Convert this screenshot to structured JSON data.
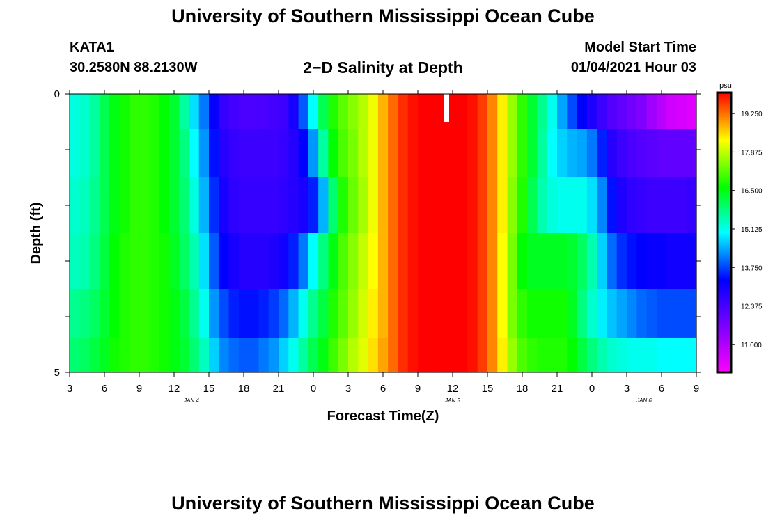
{
  "header": {
    "title": "University of Southern Mississippi Ocean Cube",
    "station_id": "KATA1",
    "station_coords": "30.2580N 88.2130W",
    "plot_title": "2−D Salinity at Depth",
    "model_start_label": "Model Start Time",
    "model_start_value": "01/04/2021 Hour 03"
  },
  "footer": {
    "title": "University of Southern Mississippi Ocean Cube"
  },
  "chart_data": {
    "type": "heatmap",
    "xlabel": "Forecast Time(Z)",
    "ylabel": "Depth (ft)",
    "x_tick_labels": [
      "3",
      "6",
      "9",
      "12",
      "15",
      "18",
      "21",
      "0",
      "3",
      "6",
      "9",
      "12",
      "15",
      "18",
      "21",
      "0",
      "3",
      "6",
      "9"
    ],
    "x_hours_from_start": [
      0,
      3,
      6,
      9,
      12,
      15,
      18,
      21,
      24,
      27,
      30,
      33,
      36,
      39,
      42,
      45,
      48,
      51,
      54
    ],
    "day_labels": [
      {
        "label": "JAN 4",
        "hour": 10.5
      },
      {
        "label": "JAN 5",
        "hour": 33
      },
      {
        "label": "JAN 6",
        "hour": 49.5
      }
    ],
    "y_tick_labels": [
      "0",
      "5"
    ],
    "ylim": [
      0,
      5
    ],
    "depth_levels_ft": [
      0.25,
      1.0,
      2.0,
      3.0,
      4.0,
      4.75
    ],
    "colorbar": {
      "unit": "psu",
      "ticks": [
        "19.250",
        "17.875",
        "16.500",
        "15.125",
        "13.750",
        "12.375",
        "11.000"
      ],
      "range": [
        10.0,
        20.0
      ]
    },
    "salinity_psu": [
      [
        15.2,
        15.3,
        15.6,
        16.1,
        16.5,
        16.7,
        16.9,
        16.9,
        16.8,
        16.6,
        16.3,
        15.6,
        14.8,
        14.1,
        13.2,
        12.6,
        12.4,
        12.3,
        12.3,
        12.3,
        12.4,
        12.5,
        13.0,
        13.9,
        15.0,
        16.1,
        16.8,
        17.2,
        17.5,
        17.8,
        18.2,
        18.8,
        19.3,
        19.7,
        19.9,
        20.0,
        20.0,
        20.0,
        20.0,
        20.0,
        19.9,
        19.6,
        19.1,
        18.4,
        17.6,
        16.9,
        16.3,
        15.7,
        15.1,
        14.4,
        13.8,
        13.3,
        12.9,
        12.5,
        12.2,
        12.0,
        11.8,
        11.6,
        11.2,
        10.9,
        10.6,
        10.5,
        10.4
      ],
      [
        15.2,
        15.3,
        15.6,
        16.1,
        16.5,
        16.7,
        16.9,
        16.9,
        16.8,
        16.6,
        16.3,
        15.8,
        15.0,
        14.3,
        13.4,
        12.8,
        12.6,
        12.5,
        12.5,
        12.5,
        12.5,
        12.6,
        12.8,
        13.3,
        14.3,
        15.6,
        16.6,
        17.1,
        17.4,
        17.8,
        18.2,
        18.8,
        19.3,
        19.7,
        19.9,
        20.0,
        20.0,
        20.0,
        20.0,
        20.0,
        19.9,
        19.6,
        19.1,
        18.4,
        17.6,
        16.9,
        16.3,
        15.6,
        15.0,
        14.7,
        14.5,
        14.4,
        14.1,
        13.5,
        12.8,
        12.5,
        12.3,
        12.2,
        12.1,
        12.0,
        12.0,
        12.0,
        12.0
      ],
      [
        15.3,
        15.4,
        15.7,
        16.1,
        16.5,
        16.7,
        16.9,
        16.9,
        16.8,
        16.6,
        16.3,
        15.9,
        15.2,
        14.5,
        13.6,
        13.0,
        12.7,
        12.6,
        12.6,
        12.6,
        12.6,
        12.7,
        12.8,
        13.0,
        13.5,
        14.5,
        15.9,
        16.8,
        17.3,
        17.7,
        18.2,
        18.8,
        19.3,
        19.7,
        19.9,
        20.0,
        20.0,
        20.0,
        20.0,
        20.0,
        19.9,
        19.6,
        19.1,
        18.4,
        17.5,
        16.8,
        16.1,
        15.5,
        15.2,
        15.1,
        15.1,
        15.1,
        14.8,
        14.2,
        13.4,
        12.9,
        12.7,
        12.6,
        12.5,
        12.5,
        12.5,
        12.5,
        12.6
      ],
      [
        15.4,
        15.5,
        15.8,
        16.2,
        16.6,
        16.8,
        16.9,
        16.9,
        16.8,
        16.7,
        16.4,
        16.0,
        15.5,
        14.8,
        13.9,
        13.3,
        13.0,
        12.8,
        12.8,
        12.8,
        12.9,
        13.1,
        13.5,
        14.1,
        15.0,
        15.8,
        16.5,
        17.1,
        17.5,
        17.9,
        18.3,
        18.8,
        19.3,
        19.7,
        19.9,
        20.0,
        20.0,
        20.0,
        20.0,
        20.0,
        19.9,
        19.6,
        19.1,
        18.3,
        17.4,
        16.6,
        16.4,
        16.4,
        16.4,
        16.4,
        16.3,
        16.0,
        15.5,
        14.7,
        14.0,
        13.6,
        13.4,
        13.3,
        13.2,
        13.2,
        13.1,
        13.1,
        13.1
      ],
      [
        15.7,
        15.8,
        16.0,
        16.3,
        16.6,
        16.8,
        16.9,
        16.9,
        16.8,
        16.7,
        16.5,
        16.2,
        15.7,
        15.1,
        14.3,
        13.8,
        13.5,
        13.4,
        13.4,
        13.5,
        13.7,
        14.0,
        14.5,
        15.1,
        15.7,
        16.2,
        16.8,
        17.2,
        17.6,
        18.0,
        18.4,
        18.8,
        19.3,
        19.7,
        19.9,
        20.0,
        20.0,
        20.0,
        20.0,
        20.0,
        19.9,
        19.6,
        19.1,
        18.3,
        17.4,
        16.9,
        16.7,
        16.7,
        16.7,
        16.7,
        16.4,
        15.8,
        15.3,
        14.9,
        14.6,
        14.4,
        14.2,
        14.0,
        13.9,
        13.8,
        13.8,
        13.8,
        13.8
      ],
      [
        15.9,
        16.0,
        16.2,
        16.4,
        16.7,
        16.8,
        16.9,
        16.9,
        16.8,
        16.7,
        16.5,
        16.3,
        15.9,
        15.4,
        14.7,
        14.2,
        14.0,
        13.9,
        13.9,
        14.1,
        14.3,
        14.7,
        15.1,
        15.6,
        16.1,
        16.5,
        17.0,
        17.4,
        17.8,
        18.1,
        18.5,
        18.9,
        19.3,
        19.7,
        19.9,
        20.0,
        20.0,
        20.0,
        20.0,
        20.0,
        19.9,
        19.6,
        19.1,
        18.4,
        17.6,
        17.1,
        16.9,
        16.8,
        16.8,
        16.8,
        16.6,
        16.2,
        15.8,
        15.5,
        15.3,
        15.2,
        15.1,
        15.1,
        15.1,
        15.0,
        15.0,
        15.0,
        15.0
      ]
    ]
  }
}
